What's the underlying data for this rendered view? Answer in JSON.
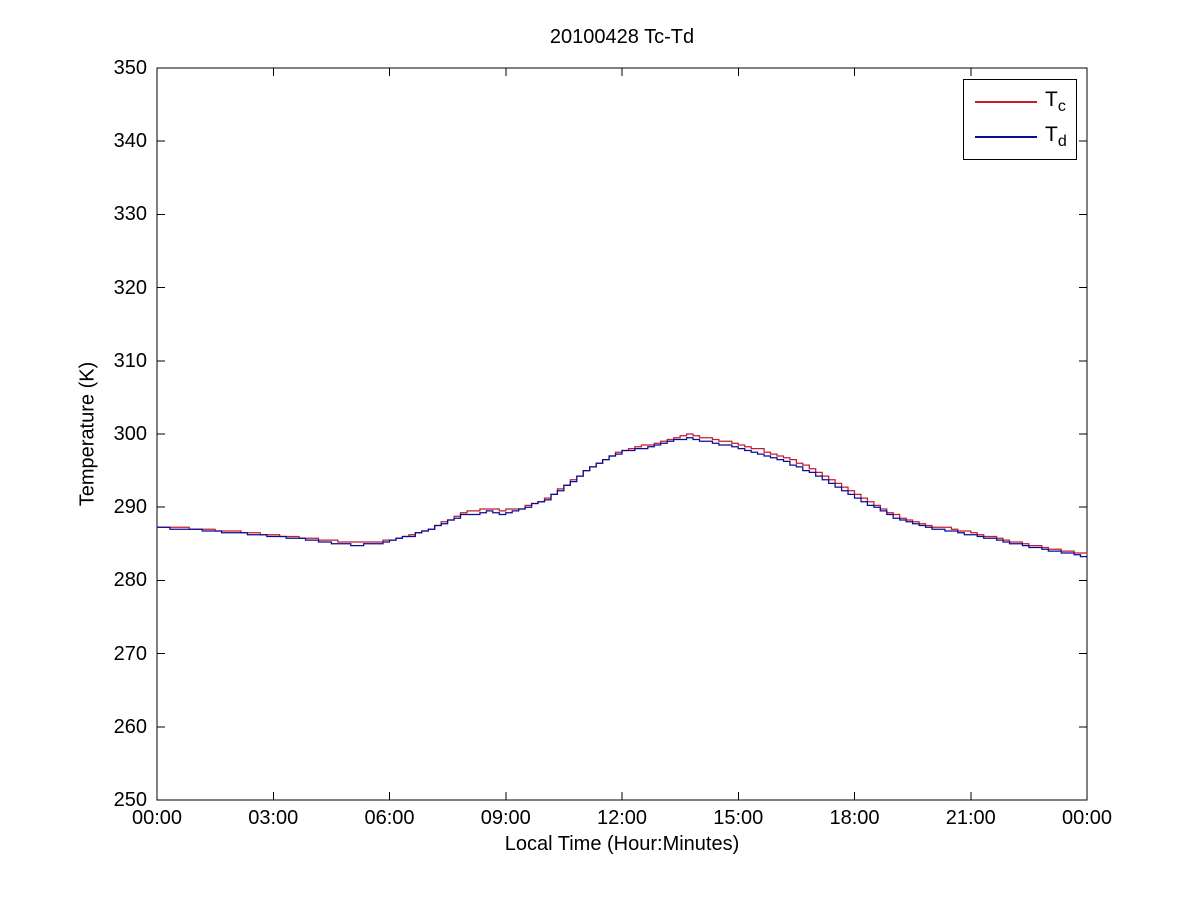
{
  "figure": {
    "title": "20100428 Tc-Td",
    "xlabel": "Local Time (Hour:Minutes)",
    "ylabel": "Temperature (K)"
  },
  "legend": {
    "position": "top-right",
    "entries": [
      {
        "main": "T",
        "sub": "c",
        "series": "Tc"
      },
      {
        "main": "T",
        "sub": "d",
        "series": "Td"
      }
    ]
  },
  "chart_data": {
    "type": "line",
    "title": "20100428 Tc-Td",
    "xlabel": "Local Time (Hour:Minutes)",
    "ylabel": "Temperature (K)",
    "x_axis_hours": [
      0,
      24
    ],
    "ylim": [
      250,
      350
    ],
    "grid": false,
    "legend_position": "top-right",
    "background_color": "#ffffff",
    "axis_color": "#000000",
    "x_ticks": [
      {
        "hour": 0,
        "label": "00:00"
      },
      {
        "hour": 3,
        "label": "03:00"
      },
      {
        "hour": 6,
        "label": "06:00"
      },
      {
        "hour": 9,
        "label": "09:00"
      },
      {
        "hour": 12,
        "label": "12:00"
      },
      {
        "hour": 15,
        "label": "15:00"
      },
      {
        "hour": 18,
        "label": "18:00"
      },
      {
        "hour": 21,
        "label": "21:00"
      },
      {
        "hour": 24,
        "label": "00:00"
      }
    ],
    "y_ticks": [
      250,
      260,
      270,
      280,
      290,
      300,
      310,
      320,
      330,
      340,
      350
    ],
    "quantization_step_K": 0.25,
    "sample_interval_minutes": 10,
    "series": [
      {
        "name": "Tc",
        "color": "#c31e2d",
        "points": [
          [
            0,
            287.3
          ],
          [
            0.8,
            287.1
          ],
          [
            1.6,
            286.8
          ],
          [
            2.4,
            286.5
          ],
          [
            3.2,
            286.1
          ],
          [
            4,
            285.7
          ],
          [
            4.6,
            285.4
          ],
          [
            5.1,
            285.2
          ],
          [
            5.6,
            285.3
          ],
          [
            6,
            285.6
          ],
          [
            6.5,
            286.2
          ],
          [
            7,
            287.1
          ],
          [
            7.5,
            288.3
          ],
          [
            7.9,
            289.3
          ],
          [
            8.3,
            289.7
          ],
          [
            8.8,
            289.6
          ],
          [
            9.3,
            289.8
          ],
          [
            9.7,
            290.6
          ],
          [
            10,
            291.2
          ],
          [
            10.5,
            293.0
          ],
          [
            11,
            295.0
          ],
          [
            11.5,
            296.6
          ],
          [
            12,
            297.8
          ],
          [
            12.5,
            298.4
          ],
          [
            13,
            299.0
          ],
          [
            13.4,
            299.6
          ],
          [
            13.7,
            300.0
          ],
          [
            14,
            299.6
          ],
          [
            14.5,
            299.1
          ],
          [
            15,
            298.5
          ],
          [
            15.5,
            297.9
          ],
          [
            16,
            297.0
          ],
          [
            16.5,
            296.1
          ],
          [
            17,
            294.7
          ],
          [
            17.5,
            293.3
          ],
          [
            18,
            291.7
          ],
          [
            18.5,
            290.3
          ],
          [
            19,
            288.9
          ],
          [
            19.4,
            288.1
          ],
          [
            19.9,
            287.4
          ],
          [
            20.4,
            287.1
          ],
          [
            21,
            286.5
          ],
          [
            21.5,
            285.9
          ],
          [
            22,
            285.3
          ],
          [
            22.5,
            284.8
          ],
          [
            23,
            284.3
          ],
          [
            23.5,
            283.9
          ],
          [
            24,
            283.5
          ]
        ]
      },
      {
        "name": "Td",
        "color": "#0b0b96",
        "points": [
          [
            0,
            287.2
          ],
          [
            0.8,
            287.0
          ],
          [
            1.6,
            286.6
          ],
          [
            2.4,
            286.3
          ],
          [
            3.2,
            285.9
          ],
          [
            4,
            285.5
          ],
          [
            4.6,
            285.0
          ],
          [
            5.1,
            284.8
          ],
          [
            5.6,
            285.0
          ],
          [
            6,
            285.5
          ],
          [
            6.5,
            286.1
          ],
          [
            7,
            287.0
          ],
          [
            7.5,
            288.2
          ],
          [
            7.9,
            289.2
          ],
          [
            8.1,
            288.9
          ],
          [
            8.4,
            289.5
          ],
          [
            8.8,
            289.0
          ],
          [
            9.3,
            289.7
          ],
          [
            9.7,
            290.5
          ],
          [
            10,
            291.1
          ],
          [
            10.5,
            292.9
          ],
          [
            11,
            294.9
          ],
          [
            11.5,
            296.5
          ],
          [
            12,
            297.7
          ],
          [
            12.3,
            297.9
          ],
          [
            12.6,
            298.2
          ],
          [
            13,
            298.8
          ],
          [
            13.4,
            299.2
          ],
          [
            13.7,
            299.4
          ],
          [
            14,
            299.1
          ],
          [
            14.5,
            298.6
          ],
          [
            15,
            298.0
          ],
          [
            15.5,
            297.3
          ],
          [
            16,
            296.5
          ],
          [
            16.5,
            295.5
          ],
          [
            17,
            294.2
          ],
          [
            17.5,
            292.8
          ],
          [
            18,
            291.2
          ],
          [
            18.5,
            289.9
          ],
          [
            19,
            288.6
          ],
          [
            19.4,
            287.8
          ],
          [
            19.9,
            287.1
          ],
          [
            20.4,
            286.8
          ],
          [
            21,
            286.2
          ],
          [
            21.5,
            285.7
          ],
          [
            22,
            285.1
          ],
          [
            22.5,
            284.6
          ],
          [
            23,
            284.1
          ],
          [
            23.5,
            283.7
          ],
          [
            24,
            283.2
          ]
        ]
      }
    ]
  }
}
